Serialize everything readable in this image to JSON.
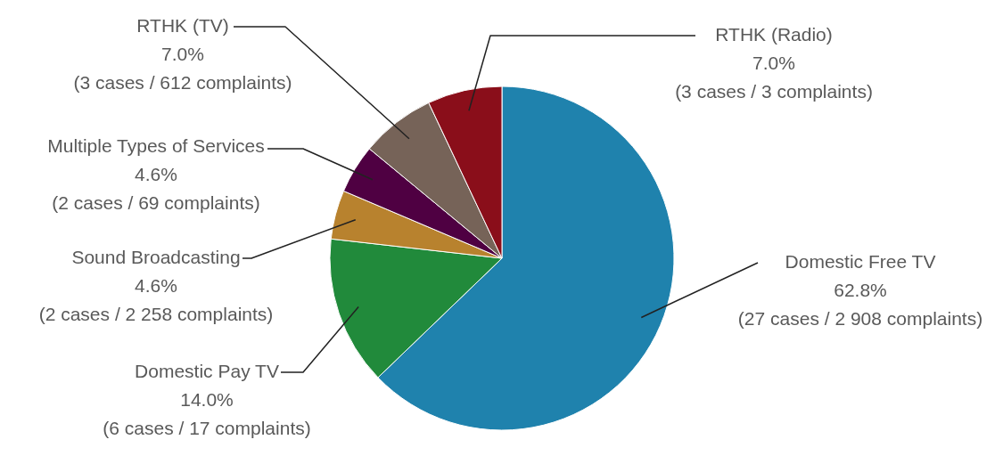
{
  "chart_data": {
    "type": "pie",
    "categories": [
      "Domestic Free TV",
      "Domestic Pay TV",
      "Sound Broadcasting",
      "Multiple Types of Services",
      "RTHK (TV)",
      "RTHK (Radio)"
    ],
    "values": [
      62.8,
      14.0,
      4.6,
      4.6,
      7.0,
      7.0
    ],
    "value_labels": [
      "62.8%",
      "14.0%",
      "4.6%",
      "4.6%",
      "7.0%",
      "7.0%"
    ],
    "colors": [
      "#1f82ad",
      "#218a3b",
      "#b8822e",
      "#4f0042",
      "#766358",
      "#8a0e1a"
    ],
    "annotations": [
      "(27 cases / 2 908 complaints)",
      "(6 cases / 17 complaints)",
      "(2 cases / 2 258 complaints)",
      "(2 cases / 69 complaints)",
      "(3 cases / 612 complaints)",
      "(3 cases / 3 complaints)"
    ],
    "data_labels": false
  }
}
